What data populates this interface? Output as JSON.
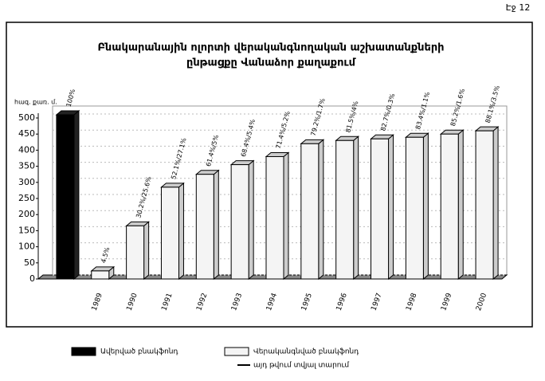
{
  "chart_data": {
    "type": "bar",
    "page_label": "Էջ 12",
    "title_lines": [
      "Բնակարանային ոլորտի վերականգնողական աշխատանքների",
      "ընթացքը Վանաձոր քաղաքում"
    ],
    "y_unit": "հազ. քառ. մ.",
    "categories": [
      null,
      "1989",
      "1990",
      "1991",
      "1992",
      "1993",
      "1994",
      "1995",
      "1996",
      "1997",
      "1998",
      "1999",
      "2000"
    ],
    "series": [
      {
        "name": "Ավերված բնակֆոնդ",
        "color": "#000000",
        "values": [
          510,
          null,
          null,
          null,
          null,
          null,
          null,
          null,
          null,
          null,
          null,
          null,
          null
        ]
      },
      {
        "name": "Վերականգնված բնակֆոնդ",
        "color": "#f4f4f4",
        "values": [
          null,
          25,
          165,
          285,
          325,
          355,
          380,
          420,
          430,
          435,
          440,
          450,
          460
        ]
      }
    ],
    "point_labels": [
      "100%",
      "4.5%",
      "30.2%/25.6%",
      "52.1%/27.1%",
      "61.4%/5%",
      "68.4%/5.4%",
      "71.4%/5.2%",
      "79.2%/1.7%",
      "81.5%/4%",
      "82.7%/0.3%",
      "83.4%/1.1%",
      "85.2%/1.6%",
      "88.1%/3.5%"
    ],
    "legend_note": "այդ թվում տվյալ տարում",
    "ylim": [
      0,
      500
    ],
    "yticks": [
      0,
      50,
      100,
      150,
      200,
      250,
      300,
      350,
      400,
      450,
      500
    ],
    "grid": true
  }
}
